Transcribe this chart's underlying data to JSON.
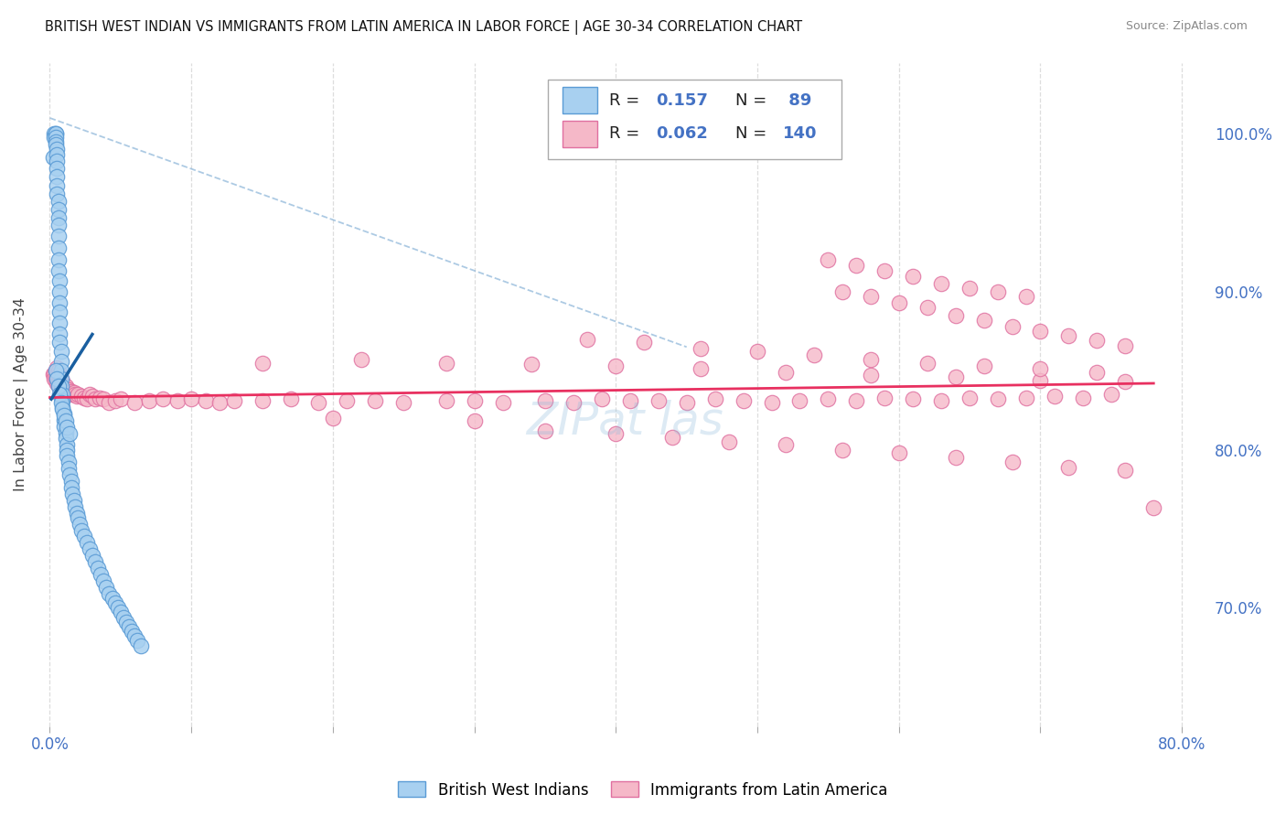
{
  "title": "BRITISH WEST INDIAN VS IMMIGRANTS FROM LATIN AMERICA IN LABOR FORCE | AGE 30-34 CORRELATION CHART",
  "source": "Source: ZipAtlas.com",
  "ylabel": "In Labor Force | Age 30-34",
  "xlim": [
    -0.008,
    0.82
  ],
  "ylim": [
    0.625,
    1.045
  ],
  "yticks_right": [
    0.7,
    0.8,
    0.9,
    1.0
  ],
  "ytick_right_labels": [
    "70.0%",
    "80.0%",
    "90.0%",
    "100.0%"
  ],
  "xtick_positions": [
    0.0,
    0.1,
    0.2,
    0.3,
    0.4,
    0.5,
    0.6,
    0.7,
    0.8
  ],
  "xtick_labels": [
    "0.0%",
    "",
    "",
    "",
    "",
    "",
    "",
    "",
    "80.0%"
  ],
  "blue_face": "#A8D0F0",
  "blue_edge": "#5A9BD5",
  "pink_face": "#F5B8C8",
  "pink_edge": "#E070A0",
  "trend_blue_color": "#1a5fa0",
  "trend_pink_color": "#E83060",
  "diag_color": "#8ab4d8",
  "text_color_value": "#4472C4",
  "watermark_text": "ZIPat las",
  "watermark_color": "#90BCDC",
  "grid_color": "#dddddd",
  "legend_R_blue": "0.157",
  "legend_N_blue": "89",
  "legend_R_pink": "0.062",
  "legend_N_pink": "140",
  "bottom_legend_labels": [
    "British West Indians",
    "Immigrants from Latin America"
  ],
  "blue_x": [
    0.002,
    0.003,
    0.003,
    0.004,
    0.004,
    0.004,
    0.004,
    0.004,
    0.005,
    0.005,
    0.005,
    0.005,
    0.005,
    0.005,
    0.005,
    0.006,
    0.006,
    0.006,
    0.006,
    0.006,
    0.006,
    0.006,
    0.006,
    0.007,
    0.007,
    0.007,
    0.007,
    0.007,
    0.007,
    0.007,
    0.008,
    0.008,
    0.008,
    0.008,
    0.008,
    0.009,
    0.009,
    0.009,
    0.01,
    0.01,
    0.01,
    0.011,
    0.011,
    0.012,
    0.012,
    0.012,
    0.013,
    0.013,
    0.014,
    0.015,
    0.015,
    0.016,
    0.017,
    0.018,
    0.019,
    0.02,
    0.021,
    0.022,
    0.024,
    0.026,
    0.028,
    0.03,
    0.032,
    0.034,
    0.036,
    0.038,
    0.04,
    0.042,
    0.044,
    0.046,
    0.048,
    0.05,
    0.052,
    0.054,
    0.056,
    0.058,
    0.06,
    0.062,
    0.064,
    0.004,
    0.005,
    0.006,
    0.007,
    0.008,
    0.009,
    0.01,
    0.011,
    0.012,
    0.014
  ],
  "blue_y": [
    0.985,
    1.0,
    0.998,
    1.0,
    1.0,
    0.998,
    0.995,
    0.993,
    0.99,
    0.987,
    0.983,
    0.978,
    0.973,
    0.967,
    0.962,
    0.957,
    0.952,
    0.947,
    0.942,
    0.935,
    0.928,
    0.92,
    0.913,
    0.907,
    0.9,
    0.893,
    0.887,
    0.88,
    0.873,
    0.868,
    0.862,
    0.856,
    0.85,
    0.845,
    0.84,
    0.835,
    0.831,
    0.827,
    0.823,
    0.819,
    0.815,
    0.811,
    0.807,
    0.803,
    0.8,
    0.796,
    0.792,
    0.788,
    0.784,
    0.78,
    0.776,
    0.772,
    0.768,
    0.764,
    0.76,
    0.757,
    0.753,
    0.749,
    0.745,
    0.741,
    0.737,
    0.733,
    0.729,
    0.725,
    0.721,
    0.717,
    0.713,
    0.709,
    0.706,
    0.703,
    0.7,
    0.697,
    0.694,
    0.691,
    0.688,
    0.685,
    0.682,
    0.679,
    0.676,
    0.85,
    0.845,
    0.84,
    0.835,
    0.83,
    0.826,
    0.822,
    0.818,
    0.814,
    0.81
  ],
  "pink_x": [
    0.002,
    0.003,
    0.003,
    0.004,
    0.004,
    0.005,
    0.005,
    0.005,
    0.005,
    0.006,
    0.006,
    0.006,
    0.006,
    0.007,
    0.007,
    0.007,
    0.008,
    0.008,
    0.008,
    0.008,
    0.009,
    0.009,
    0.01,
    0.01,
    0.01,
    0.011,
    0.011,
    0.012,
    0.012,
    0.013,
    0.014,
    0.015,
    0.016,
    0.017,
    0.018,
    0.019,
    0.02,
    0.022,
    0.024,
    0.026,
    0.028,
    0.03,
    0.032,
    0.035,
    0.038,
    0.042,
    0.046,
    0.05,
    0.06,
    0.07,
    0.08,
    0.09,
    0.1,
    0.11,
    0.12,
    0.13,
    0.15,
    0.17,
    0.19,
    0.21,
    0.23,
    0.25,
    0.28,
    0.3,
    0.32,
    0.35,
    0.37,
    0.39,
    0.41,
    0.43,
    0.45,
    0.47,
    0.49,
    0.51,
    0.53,
    0.55,
    0.57,
    0.59,
    0.61,
    0.63,
    0.65,
    0.67,
    0.69,
    0.71,
    0.73,
    0.75,
    0.2,
    0.3,
    0.35,
    0.4,
    0.44,
    0.48,
    0.52,
    0.56,
    0.6,
    0.64,
    0.68,
    0.72,
    0.76,
    0.15,
    0.22,
    0.28,
    0.34,
    0.4,
    0.46,
    0.52,
    0.58,
    0.64,
    0.7,
    0.76,
    0.38,
    0.42,
    0.46,
    0.5,
    0.54,
    0.58,
    0.62,
    0.66,
    0.7,
    0.74,
    0.56,
    0.58,
    0.6,
    0.62,
    0.64,
    0.66,
    0.68,
    0.7,
    0.72,
    0.74,
    0.76,
    0.78,
    0.55,
    0.57,
    0.59,
    0.61,
    0.63,
    0.65,
    0.67,
    0.69
  ],
  "pink_y": [
    0.848,
    0.848,
    0.845,
    0.85,
    0.845,
    0.852,
    0.848,
    0.845,
    0.842,
    0.85,
    0.847,
    0.844,
    0.841,
    0.845,
    0.842,
    0.839,
    0.845,
    0.842,
    0.839,
    0.836,
    0.843,
    0.84,
    0.84,
    0.837,
    0.834,
    0.84,
    0.837,
    0.838,
    0.835,
    0.838,
    0.836,
    0.837,
    0.835,
    0.836,
    0.835,
    0.834,
    0.835,
    0.834,
    0.833,
    0.832,
    0.835,
    0.834,
    0.832,
    0.833,
    0.832,
    0.83,
    0.831,
    0.832,
    0.83,
    0.831,
    0.832,
    0.831,
    0.832,
    0.831,
    0.83,
    0.831,
    0.831,
    0.832,
    0.83,
    0.831,
    0.831,
    0.83,
    0.831,
    0.831,
    0.83,
    0.831,
    0.83,
    0.832,
    0.831,
    0.831,
    0.83,
    0.832,
    0.831,
    0.83,
    0.831,
    0.832,
    0.831,
    0.833,
    0.832,
    0.831,
    0.833,
    0.832,
    0.833,
    0.834,
    0.833,
    0.835,
    0.82,
    0.818,
    0.812,
    0.81,
    0.808,
    0.805,
    0.803,
    0.8,
    0.798,
    0.795,
    0.792,
    0.789,
    0.787,
    0.855,
    0.857,
    0.855,
    0.854,
    0.853,
    0.851,
    0.849,
    0.847,
    0.846,
    0.844,
    0.843,
    0.87,
    0.868,
    0.864,
    0.862,
    0.86,
    0.857,
    0.855,
    0.853,
    0.851,
    0.849,
    0.9,
    0.897,
    0.893,
    0.89,
    0.885,
    0.882,
    0.878,
    0.875,
    0.872,
    0.869,
    0.866,
    0.763,
    0.92,
    0.917,
    0.913,
    0.91,
    0.905,
    0.902,
    0.9,
    0.897
  ]
}
